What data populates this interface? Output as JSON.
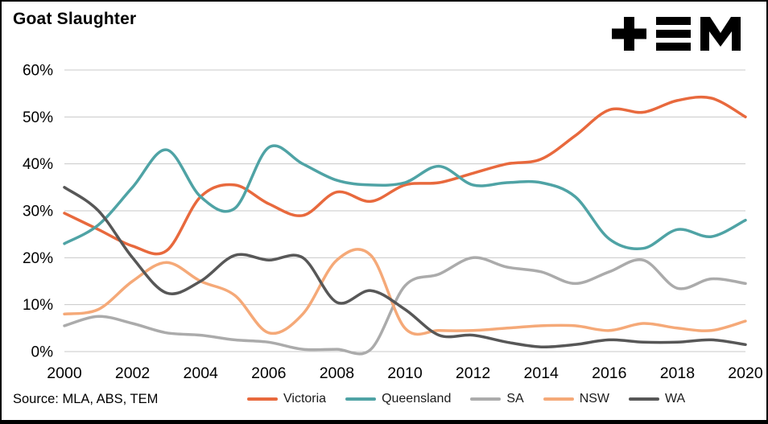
{
  "title": "Goat Slaughter",
  "source": "Source: MLA, ABS, TEM",
  "logo_name": "TEM logo",
  "chart_data": {
    "type": "line",
    "title": "Goat Slaughter",
    "xlabel": "",
    "ylabel": "",
    "x": [
      2000,
      2001,
      2002,
      2003,
      2004,
      2005,
      2006,
      2007,
      2008,
      2009,
      2010,
      2011,
      2012,
      2013,
      2014,
      2015,
      2016,
      2017,
      2018,
      2019,
      2020
    ],
    "xticks": [
      2000,
      2002,
      2004,
      2006,
      2008,
      2010,
      2012,
      2014,
      2016,
      2018,
      2020
    ],
    "xlim": [
      2000,
      2020
    ],
    "ylim": [
      0,
      60
    ],
    "ytick_step": 10,
    "ytick_suffix": "%",
    "grid": true,
    "grid_color": "#c8c8c8",
    "legend_position": "bottom",
    "series": [
      {
        "name": "Victoria",
        "color": "#e8693d",
        "values": [
          29.5,
          26,
          22.5,
          21.5,
          33,
          35.5,
          31.5,
          29,
          34,
          32,
          35.5,
          36,
          38,
          40,
          41,
          46,
          51.5,
          51,
          53.5,
          54,
          50
        ]
      },
      {
        "name": "Queensland",
        "color": "#4fa3a5",
        "values": [
          23,
          27,
          35,
          43,
          33,
          30.5,
          43.5,
          40,
          36.5,
          35.5,
          36,
          39.5,
          35.5,
          36,
          36,
          33,
          24,
          22,
          26,
          24.5,
          28
        ]
      },
      {
        "name": "SA",
        "color": "#ababab",
        "values": [
          5.5,
          7.5,
          6,
          4,
          3.5,
          2.5,
          2,
          0.5,
          0.5,
          0.5,
          14,
          16.5,
          20,
          18,
          17,
          14.5,
          17,
          19.5,
          13.5,
          15.5,
          14.5
        ]
      },
      {
        "name": "NSW",
        "color": "#f5a978",
        "values": [
          8,
          9,
          15,
          19,
          15,
          12,
          4,
          8,
          19.5,
          20.5,
          5,
          4.5,
          4.5,
          5,
          5.5,
          5.5,
          4.5,
          6,
          5,
          4.5,
          6.5
        ]
      },
      {
        "name": "WA",
        "color": "#575757",
        "values": [
          35,
          30,
          20,
          12.5,
          15,
          20.5,
          19.5,
          20,
          10.5,
          13,
          9,
          3.5,
          3.5,
          2,
          1,
          1.5,
          2.5,
          2,
          2,
          2.5,
          1.5
        ]
      }
    ]
  }
}
